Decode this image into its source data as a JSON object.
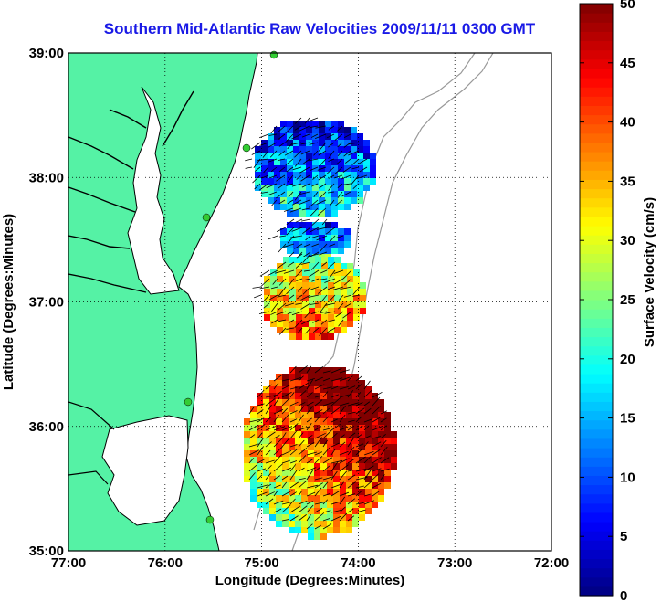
{
  "title": "Southern Mid-Atlantic Raw Velocities 2009/11/11 0300 GMT",
  "map": {
    "xlabel": "Longitude (Degrees:Minutes)",
    "ylabel": "Latitude (Degrees:Minutes)",
    "lon_range": [
      -77,
      -72
    ],
    "lat_range": [
      35,
      39
    ],
    "x_ticks": [
      {
        "value": -77,
        "label": "77:00"
      },
      {
        "value": -76,
        "label": "76:00"
      },
      {
        "value": -75,
        "label": "75:00"
      },
      {
        "value": -74,
        "label": "74:00"
      },
      {
        "value": -73,
        "label": "73:00"
      },
      {
        "value": -72,
        "label": "72:00"
      }
    ],
    "y_ticks": [
      {
        "value": 39,
        "label": "39:00"
      },
      {
        "value": 38,
        "label": "38:00"
      },
      {
        "value": 37,
        "label": "37:00"
      },
      {
        "value": 36,
        "label": "36:00"
      },
      {
        "value": 35,
        "label": "35:00"
      }
    ],
    "grid": "dotted",
    "land_color": "#55f2a5",
    "ocean_color": "#ffffff",
    "station_color": "#33cc33",
    "colorbar": {
      "label": "Surface Velocity (cm/s)",
      "min": 0,
      "max": 50,
      "ticks": [
        "0",
        "5",
        "10",
        "15",
        "20",
        "25",
        "30",
        "35",
        "40",
        "45",
        "50"
      ],
      "colormap": "jet"
    }
  }
}
